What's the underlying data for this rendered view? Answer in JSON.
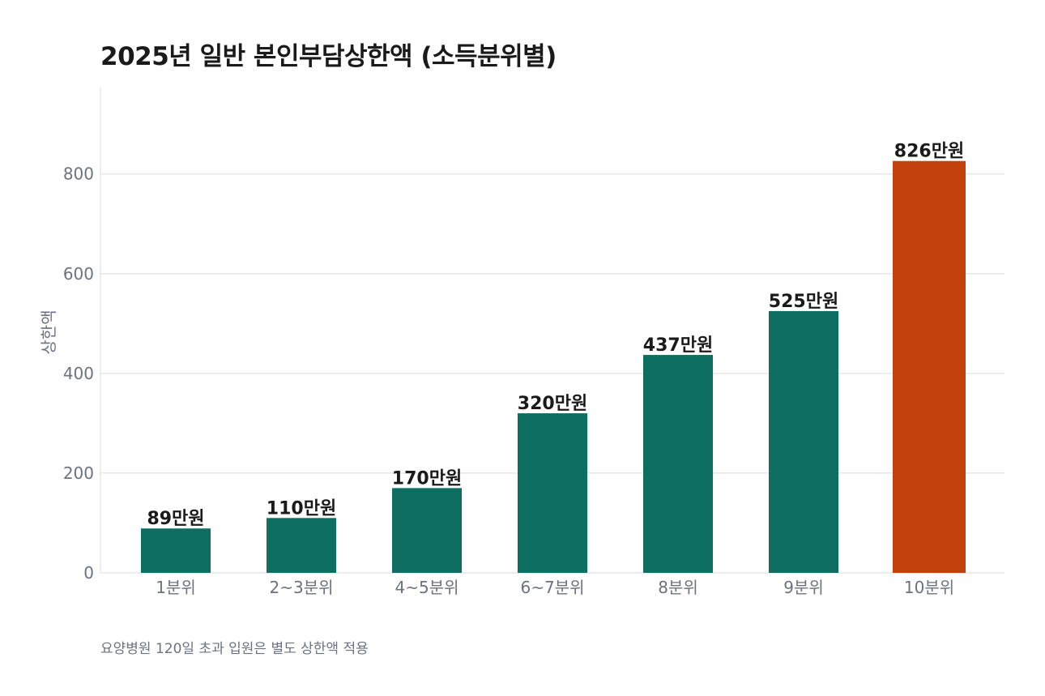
{
  "chart_data": {
    "type": "bar",
    "title": "2025년 일반 본인부담상한액 (소득분위별)",
    "ylabel": "상한액",
    "xlabel": "",
    "categories": [
      "1분위",
      "2~3분위",
      "4~5분위",
      "6~7분위",
      "8분위",
      "9분위",
      "10분위"
    ],
    "values": [
      89,
      110,
      170,
      320,
      437,
      525,
      826
    ],
    "data_labels": [
      "89만원",
      "110만원",
      "170만원",
      "320만원",
      "437만원",
      "525만원",
      "826만원"
    ],
    "bar_colors": [
      "#0e6e61",
      "#0e6e61",
      "#0e6e61",
      "#0e6e61",
      "#0e6e61",
      "#0e6e61",
      "#c2410c"
    ],
    "ylim": [
      0,
      960
    ],
    "yticks": [
      0,
      200,
      400,
      600,
      800
    ],
    "grid": true,
    "annotation": "요양병원 120일 초과 입원은 별도 상한액 적용"
  },
  "colors": {
    "bar": "#0e6e61",
    "highlight": "#c2410c",
    "grid": "#e5e7eb",
    "axis_text": "#6b7280"
  }
}
